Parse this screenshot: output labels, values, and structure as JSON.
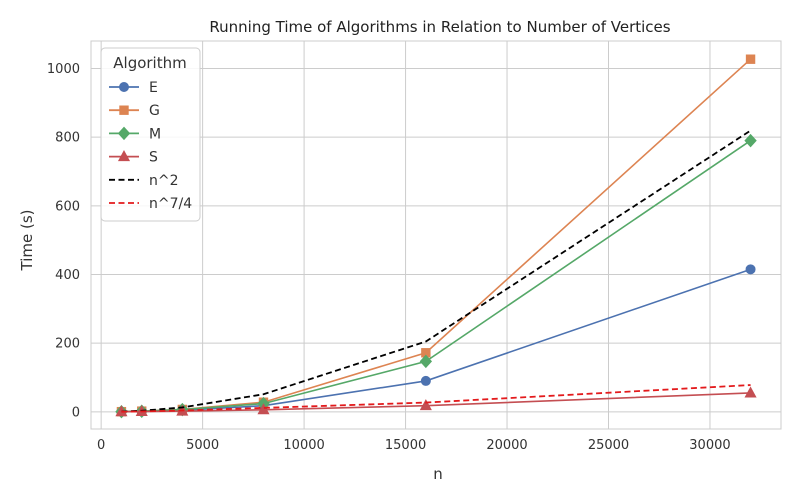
{
  "chart_data": {
    "type": "line",
    "title": "Running Time of Algorithms in Relation to Number of Vertices",
    "xlabel": "n",
    "ylabel": "Time (s)",
    "x": [
      1000,
      2000,
      4000,
      8000,
      16000,
      32000
    ],
    "xlim": [
      -500,
      33500
    ],
    "ylim": [
      -50,
      1080
    ],
    "xticks": [
      0,
      5000,
      10000,
      15000,
      20000,
      25000,
      30000
    ],
    "yticks": [
      0,
      200,
      400,
      600,
      800,
      1000
    ],
    "grid": true,
    "legend": {
      "title": "Algorithm",
      "placement": "top-left"
    },
    "series": [
      {
        "name": "E",
        "values": [
          0.3,
          1.2,
          4.5,
          18,
          90,
          415
        ],
        "color": "#4c72b0",
        "marker": "circle",
        "dash": "solid"
      },
      {
        "name": "G",
        "values": [
          0.5,
          2,
          7,
          28,
          172,
          1027
        ],
        "color": "#dd8452",
        "marker": "square",
        "dash": "solid"
      },
      {
        "name": "M",
        "values": [
          0.4,
          1.8,
          6.5,
          24,
          147,
          790
        ],
        "color": "#55a868",
        "marker": "diamond",
        "dash": "solid"
      },
      {
        "name": "S",
        "values": [
          0.2,
          0.8,
          2,
          6,
          18,
          55
        ],
        "color": "#c44e52",
        "marker": "triangle",
        "dash": "solid"
      },
      {
        "name": "n^2",
        "values": [
          0.8,
          3.2,
          12.8,
          51.2,
          204.8,
          819.2
        ],
        "color": "#000000",
        "marker": "none",
        "dash": "dashed"
      },
      {
        "name": "n^7/4",
        "values": [
          0.4,
          1.2,
          4,
          11.5,
          27,
          78
        ],
        "color": "#e31a1c",
        "marker": "none",
        "dash": "dashed"
      }
    ]
  }
}
